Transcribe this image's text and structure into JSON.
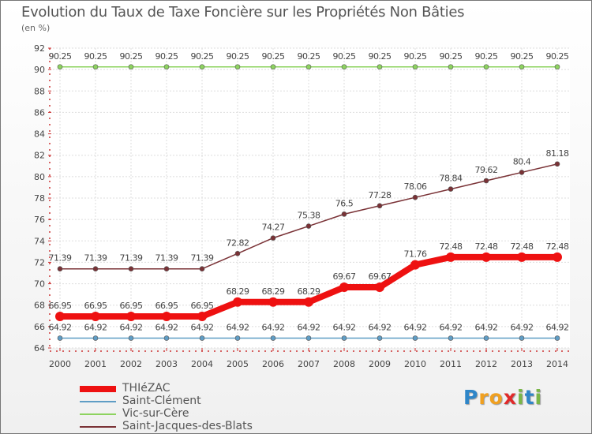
{
  "chart_data": {
    "type": "line",
    "title": "Evolution du Taux de Taxe Foncière sur les Propriétés Non Bâties",
    "subtitle": "(en %)",
    "xlabel": "",
    "ylabel": "",
    "ylim": [
      64,
      92
    ],
    "yticks": [
      "64",
      "66",
      "68",
      "70",
      "72",
      "74",
      "76",
      "78",
      "80",
      "82",
      "84",
      "86",
      "88",
      "90",
      "92"
    ],
    "categories": [
      "2000",
      "2001",
      "2002",
      "2003",
      "2004",
      "2005",
      "2006",
      "2007",
      "2008",
      "2009",
      "2010",
      "2011",
      "2012",
      "2013",
      "2014"
    ],
    "grid": true,
    "legend_position": "bottom-left",
    "series": [
      {
        "name": "Saint-Clément",
        "color": "#5f9dc5",
        "values": [
          64.92,
          64.92,
          64.92,
          64.92,
          64.92,
          64.92,
          64.92,
          64.92,
          64.92,
          64.92,
          64.92,
          64.92,
          64.92,
          64.92,
          64.92
        ],
        "labels": [
          "64.92",
          "64.92",
          "64.92",
          "64.92",
          "64.92",
          "64.92",
          "64.92",
          "64.92",
          "64.92",
          "64.92",
          "64.92",
          "64.92",
          "64.92",
          "64.92",
          "64.92"
        ]
      },
      {
        "name": "Vic-sur-Cère",
        "color": "#8dd35f",
        "values": [
          90.25,
          90.25,
          90.25,
          90.25,
          90.25,
          90.25,
          90.25,
          90.25,
          90.25,
          90.25,
          90.25,
          90.25,
          90.25,
          90.25,
          90.25
        ],
        "labels": [
          "90.25",
          "90.25",
          "90.25",
          "90.25",
          "90.25",
          "90.25",
          "90.25",
          "90.25",
          "90.25",
          "90.25",
          "90.25",
          "90.25",
          "90.25",
          "90.25",
          "90.25"
        ]
      },
      {
        "name": "Saint-Jacques-des-Blats",
        "color": "#7a3236",
        "values": [
          71.39,
          71.39,
          71.39,
          71.39,
          71.39,
          72.82,
          74.27,
          75.38,
          76.5,
          77.28,
          78.06,
          78.84,
          79.62,
          80.4,
          81.18
        ],
        "labels": [
          "71.39",
          "71.39",
          "71.39",
          "71.39",
          "71.39",
          "72.82",
          "74.27",
          "75.38",
          "76.5",
          "77.28",
          "78.06",
          "78.84",
          "79.62",
          "80.4",
          "81.18"
        ]
      },
      {
        "name": "THIéZAC",
        "color": "#ee1111",
        "values": [
          66.95,
          66.95,
          66.95,
          66.95,
          66.95,
          68.29,
          68.29,
          68.29,
          69.67,
          69.67,
          71.76,
          72.48,
          72.48,
          72.48,
          72.48
        ],
        "labels": [
          "66.95",
          "66.95",
          "66.95",
          "66.95",
          "66.95",
          "68.29",
          "68.29",
          "68.29",
          "69.67",
          "69.67",
          "71.76",
          "72.48",
          "72.48",
          "72.48",
          "72.48"
        ]
      }
    ],
    "legend": [
      {
        "name": "THIéZAC",
        "color": "#ee1111"
      },
      {
        "name": "Saint-Clément",
        "color": "#5f9dc5"
      },
      {
        "name": "Vic-sur-Cère",
        "color": "#8dd35f"
      },
      {
        "name": "Saint-Jacques-des-Blats",
        "color": "#7a3236"
      }
    ]
  },
  "logo": {
    "letters": [
      "P",
      "r",
      "o",
      "x",
      "i",
      "t",
      "i"
    ],
    "colors": [
      "#2f86c8",
      "#f0a020",
      "#f0a020",
      "#e02a2a",
      "#7ab648",
      "#2f86c8",
      "#7ab648"
    ]
  }
}
